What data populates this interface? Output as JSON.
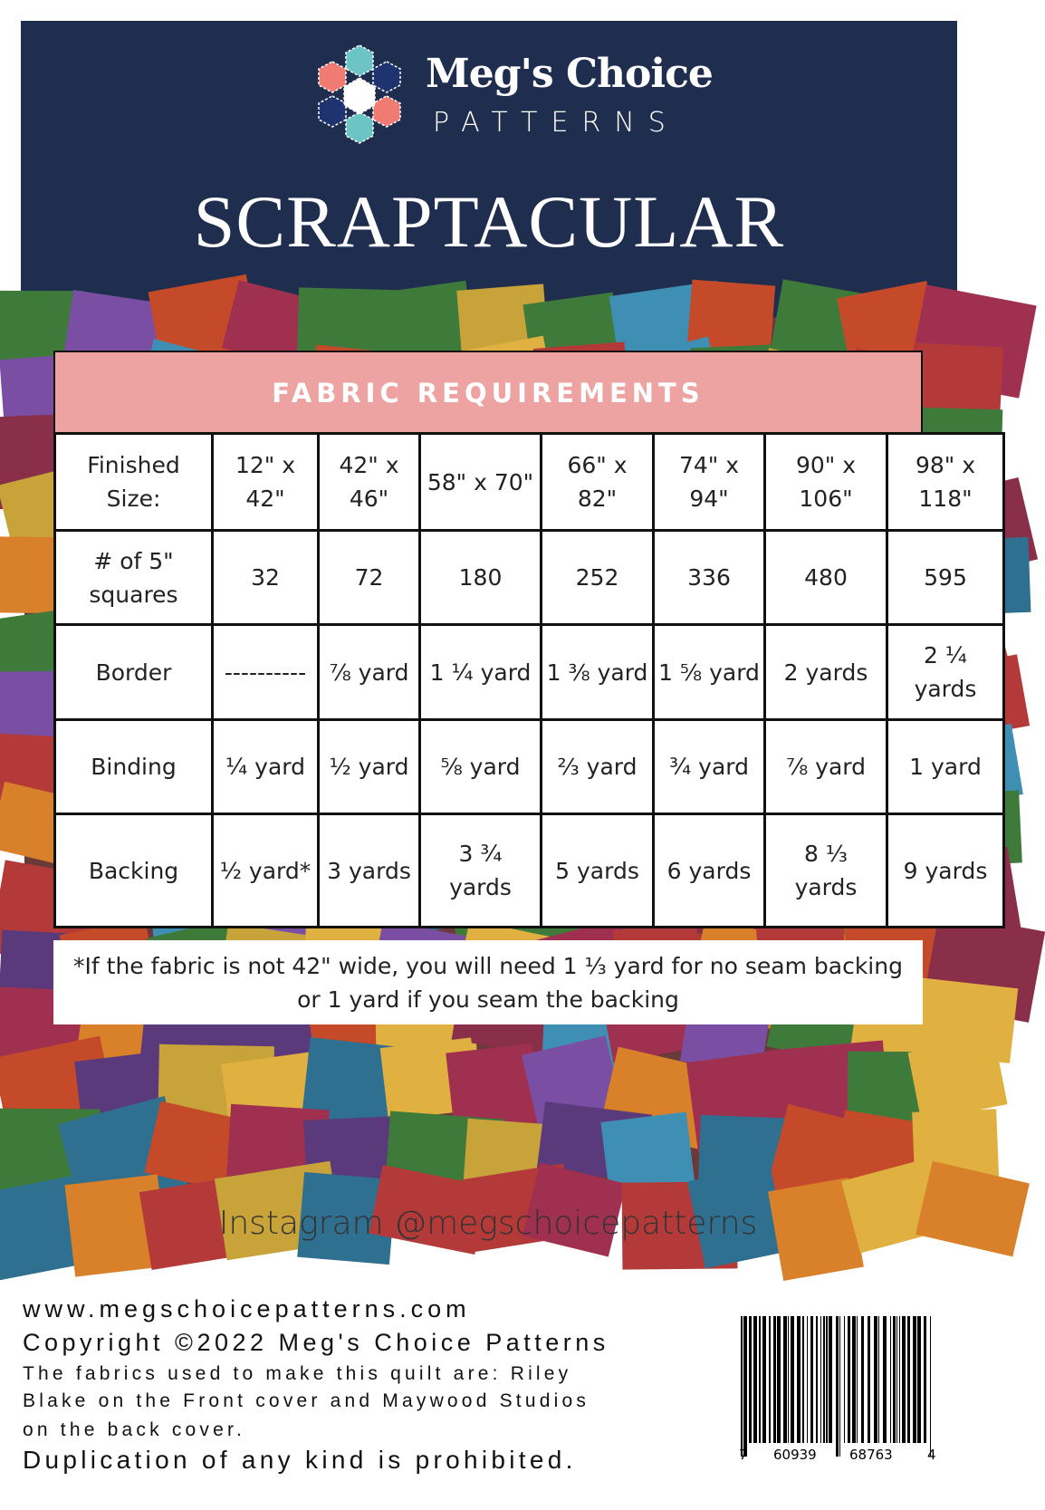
{
  "header": {
    "brand_name": "Meg's Choice",
    "brand_sub": "PATTERNS",
    "title": "SCRAPTACULAR",
    "colors": {
      "navy": "#1f2d4f",
      "coral": "#ef7b73",
      "teal": "#6cc4c5",
      "blue": "#1e3370"
    }
  },
  "table": {
    "heading": "FABRIC REQUIREMENTS",
    "heading_color": "#eea3a3",
    "rows": [
      {
        "label": "Finished Size:",
        "values": [
          "12\" x 42\"",
          "42\" x 46\"",
          "58\" x 70\"",
          "66\" x 82\"",
          "74\" x 94\"",
          "90\" x 106\"",
          "98\" x 118\""
        ]
      },
      {
        "label": "# of 5\" squares",
        "values": [
          "32",
          "72",
          "180",
          "252",
          "336",
          "480",
          "595"
        ]
      },
      {
        "label": "Border",
        "values": [
          "----------",
          "⅞ yard",
          "1 ¼ yard",
          "1 ⅜ yard",
          "1 ⅝ yard",
          "2 yards",
          "2 ¼ yards"
        ]
      },
      {
        "label": "Binding",
        "values": [
          "¼ yard",
          "½ yard",
          "⅝ yard",
          "⅔ yard",
          "¾ yard",
          "⅞ yard",
          "1 yard"
        ]
      },
      {
        "label": "Backing",
        "values": [
          "½ yard*",
          "3 yards",
          "3 ¾ yards",
          "5 yards",
          "6 yards",
          "8 ⅓ yards",
          "9 yards"
        ]
      }
    ]
  },
  "note": {
    "line1": "*If the fabric is not 42\" wide, you will need 1 ⅓ yard for no seam backing",
    "line2": "or 1 yard if you seam the backing"
  },
  "instagram": "Instagram @megschoicepatterns",
  "footer": {
    "website": "www.megschoicepatterns.com",
    "copyright": "Copyright ©2022 Meg's Choice Patterns",
    "fabrics_line1": "The fabrics used to make this quilt are: Riley",
    "fabrics_line2": "Blake on the Front cover and Maywood Studios",
    "fabrics_line3": "on the back cover.",
    "duplication": "Duplication of any kind is prohibited."
  },
  "barcode": {
    "digits": [
      "7",
      "60939",
      "68763",
      "4"
    ]
  },
  "photo": {
    "palette": [
      "#b43a3a",
      "#3f8fb5",
      "#d9812a",
      "#7a4fa3",
      "#c8a33a",
      "#3e7a3a",
      "#8a2f4a",
      "#2f6f8f",
      "#c44a2a",
      "#5a3a7a",
      "#e0b040",
      "#a03050"
    ]
  }
}
